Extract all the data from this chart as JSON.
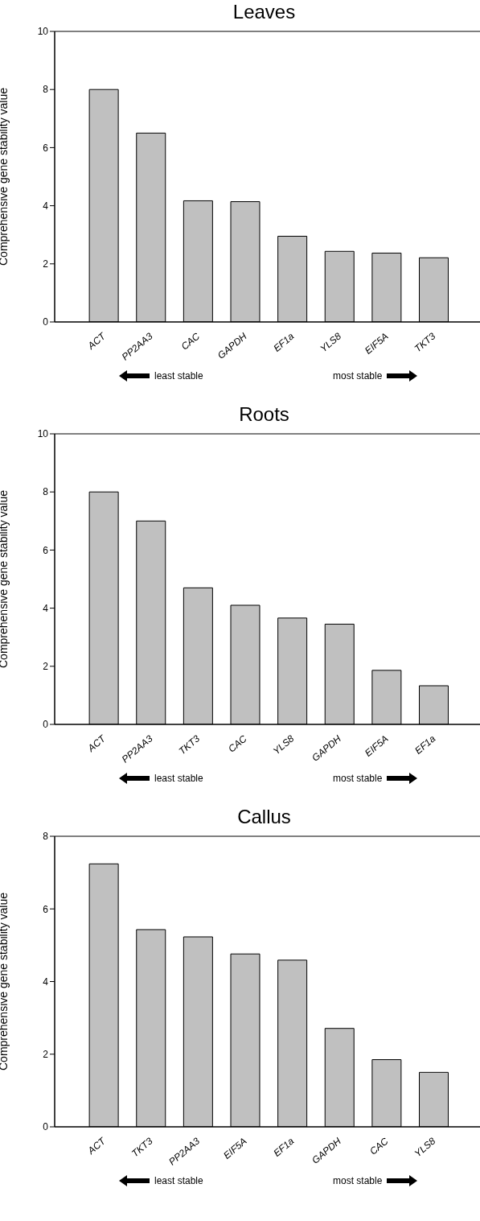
{
  "chart_data": [
    {
      "type": "bar",
      "title": "Leaves",
      "ylabel": "Comprehensive gene stability value",
      "categories": [
        "ACT",
        "PP2AA3",
        "CAC",
        "GAPDH",
        "EF1a",
        "YLS8",
        "EIF5A",
        "TKT3"
      ],
      "values": [
        8.0,
        6.5,
        4.17,
        4.14,
        2.95,
        2.43,
        2.37,
        2.21
      ],
      "color": "#c0c0c0",
      "ylim": [
        0,
        10
      ],
      "yticks": [
        0,
        2,
        4,
        6,
        8,
        10
      ],
      "grid": false,
      "annotations": [
        "least stable",
        "most stable"
      ]
    },
    {
      "type": "bar",
      "title": "Roots",
      "ylabel": "Comprehensive gene stability value",
      "categories": [
        "ACT",
        "PP2AA3",
        "TKT3",
        "CAC",
        "YLS8",
        "GAPDH",
        "EIF5A",
        "EF1a"
      ],
      "values": [
        8.0,
        7.0,
        4.7,
        4.1,
        3.66,
        3.45,
        1.86,
        1.33
      ],
      "color": "#c0c0c0",
      "ylim": [
        0,
        10
      ],
      "yticks": [
        0,
        2,
        4,
        6,
        8,
        10
      ],
      "grid": false,
      "annotations": [
        "least stable",
        "most stable"
      ]
    },
    {
      "type": "bar",
      "title": "Callus",
      "ylabel": "Comprehensive gene stability value",
      "categories": [
        "ACT",
        "TKT3",
        "PP2AA3",
        "EIF5A",
        "EF1a",
        "GAPDH",
        "CAC",
        "YLS8"
      ],
      "values": [
        7.24,
        5.43,
        5.23,
        4.76,
        4.59,
        2.71,
        1.85,
        1.5
      ],
      "color": "#c0c0c0",
      "ylim": [
        0,
        8
      ],
      "yticks": [
        0,
        2,
        4,
        6,
        8
      ],
      "grid": false,
      "annotations": [
        "least stable",
        "most stable"
      ]
    }
  ]
}
